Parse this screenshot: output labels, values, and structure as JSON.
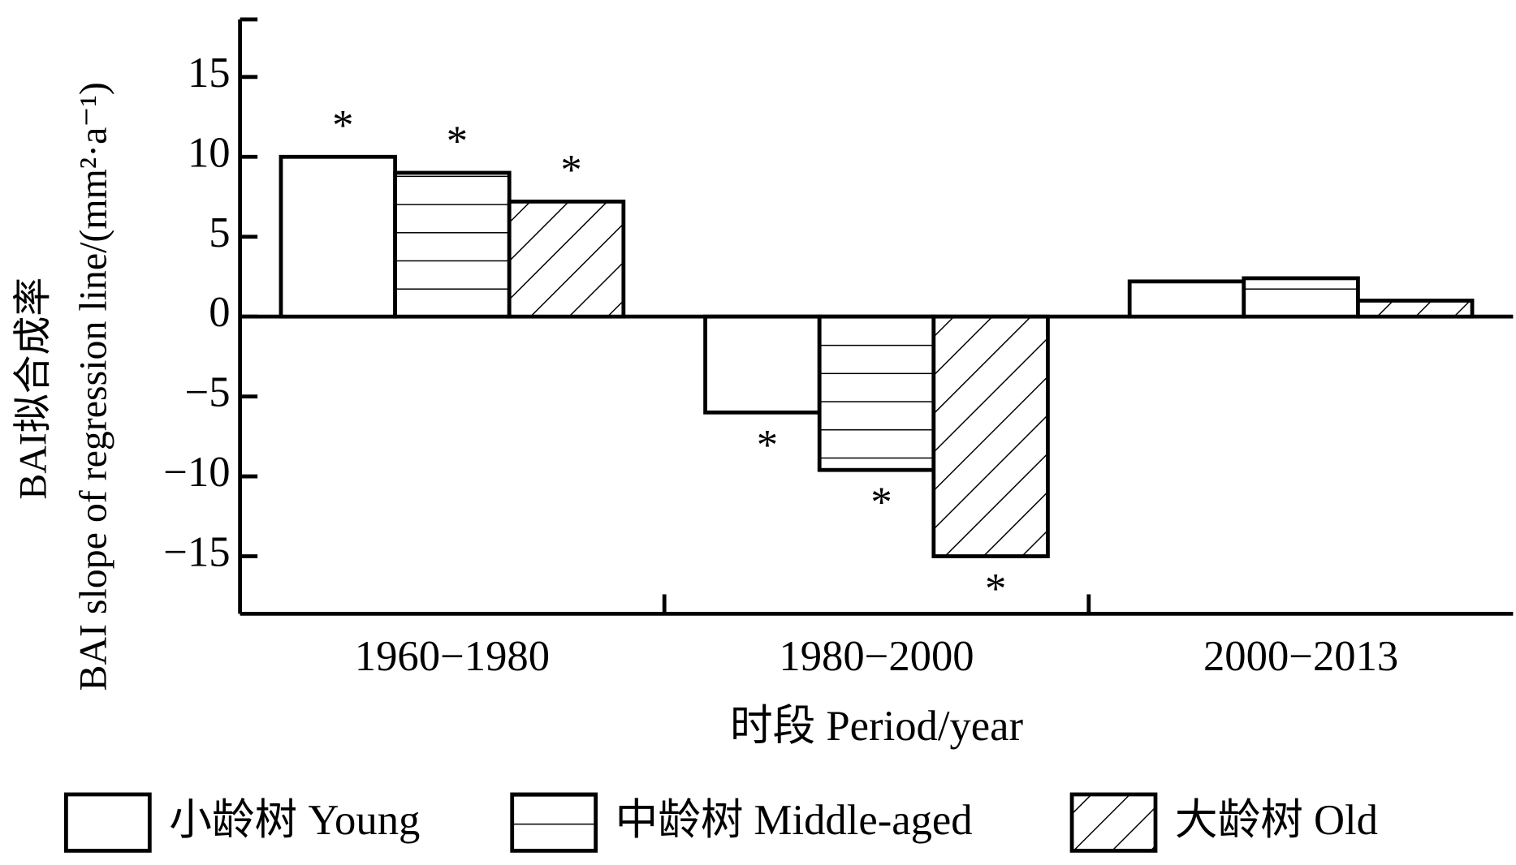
{
  "chart_data": {
    "type": "bar",
    "y_title_cn": "BAI拟合成率",
    "y_title": "BAI slope of regression line/(mm²·a⁻¹)",
    "x_title": "时段  Period/year",
    "categories": [
      "1960−1980",
      "1980−2000",
      "2000−2013"
    ],
    "series": [
      {
        "name": "小龄树  Young",
        "color": "#ffffff",
        "pattern": "none",
        "values": [
          10,
          -6.0,
          2.2
        ],
        "significance": [
          "*",
          "*",
          null
        ]
      },
      {
        "name": "中龄树  Middle-aged",
        "color": "#ffffff",
        "pattern": "horizontal",
        "values": [
          9,
          -9.6,
          2.4
        ],
        "significance": [
          "*",
          "*",
          null
        ]
      },
      {
        "name": "大龄树  Old",
        "color": "#ffffff",
        "pattern": "diagonal",
        "values": [
          7.2,
          -15,
          1.0
        ],
        "significance": [
          "*",
          "*",
          null
        ]
      }
    ],
    "ylim": [
      -18.6,
      18.6
    ],
    "yticks": [
      {
        "value": -15,
        "label": "−15"
      },
      {
        "value": -10,
        "label": "−10"
      },
      {
        "value": -5,
        "label": "−5"
      },
      0,
      5,
      10,
      15
    ],
    "legend": "bottom"
  }
}
